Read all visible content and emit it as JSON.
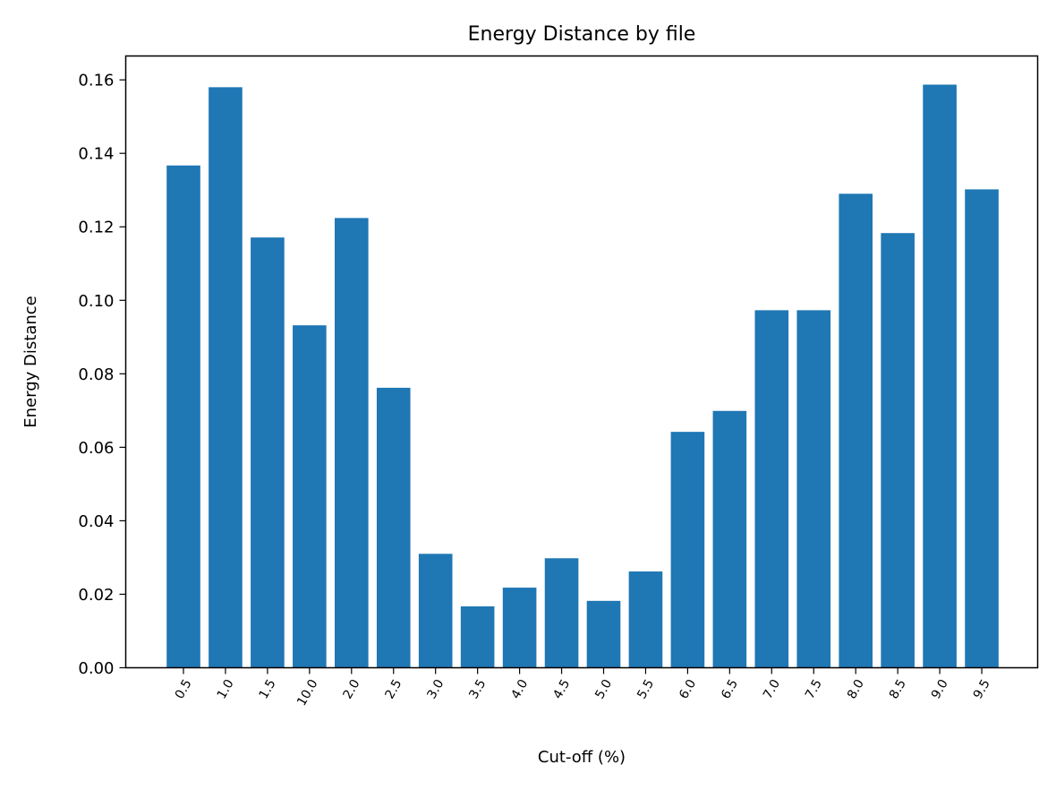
{
  "chart_data": {
    "type": "bar",
    "title": "Energy Distance by file",
    "xlabel": "Cut-off (%)",
    "ylabel": "Energy Distance",
    "categories": [
      "0.5",
      "1.0",
      "1.5",
      "10.0",
      "2.0",
      "2.5",
      "3.0",
      "3.5",
      "4.0",
      "4.5",
      "5.0",
      "5.5",
      "6.0",
      "6.5",
      "7.0",
      "7.5",
      "8.0",
      "8.5",
      "9.0",
      "9.5"
    ],
    "values": [
      0.1367,
      0.158,
      0.1171,
      0.0932,
      0.1224,
      0.0762,
      0.031,
      0.0167,
      0.0218,
      0.0298,
      0.0182,
      0.0262,
      0.0642,
      0.0699,
      0.0973,
      0.0973,
      0.129,
      0.1183,
      0.1587,
      0.1302
    ],
    "ylim": [
      0,
      0.1665
    ],
    "yticks": [
      "0.00",
      "0.02",
      "0.04",
      "0.06",
      "0.08",
      "0.10",
      "0.12",
      "0.14",
      "0.16"
    ],
    "bar_color": "#1f77b4",
    "grid": false,
    "legend": "none"
  }
}
